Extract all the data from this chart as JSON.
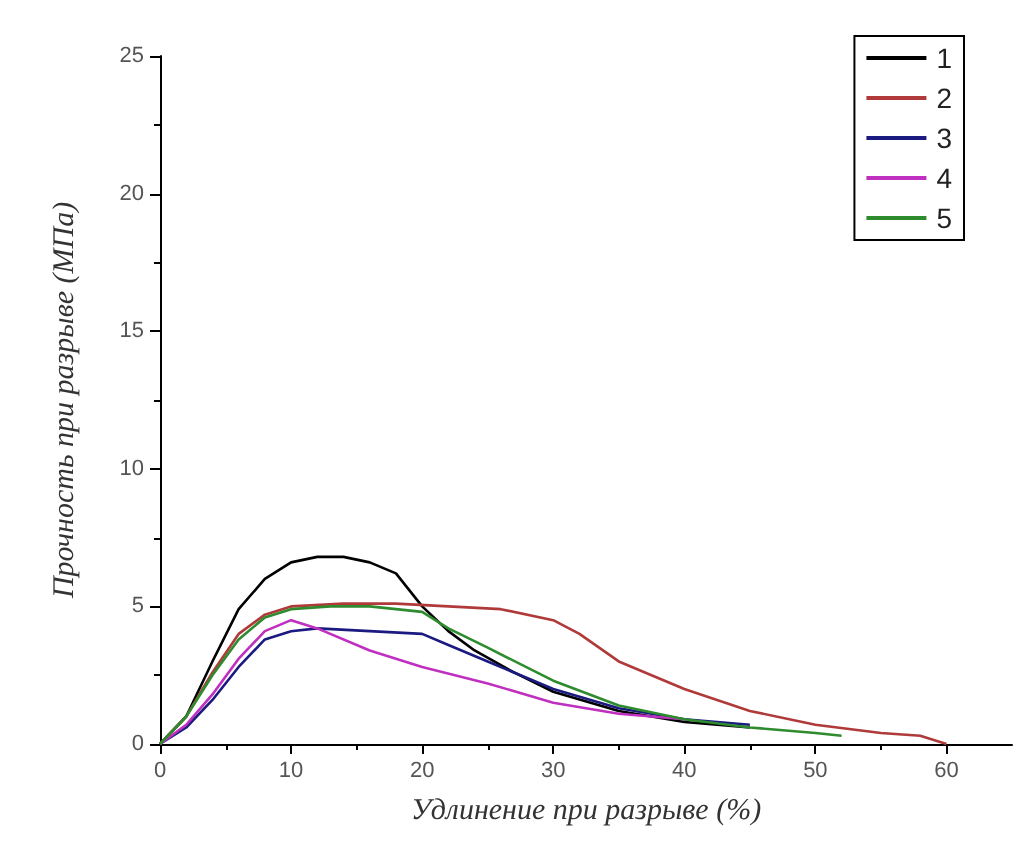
{
  "chart_data": {
    "type": "line",
    "xlabel": "Удлинение при разрыве (%)",
    "ylabel": "Прочность при разрыве (МПа)",
    "xlim": [
      0,
      65
    ],
    "xticks": [
      0,
      10,
      20,
      30,
      40,
      50,
      60
    ],
    "ylim": [
      0,
      25
    ],
    "yticks": [
      0,
      5,
      10,
      15,
      20,
      25
    ],
    "grid": false,
    "legend": "top right",
    "marker": "none",
    "line_style": "solid",
    "series": [
      {
        "name": "1",
        "color": "#000000",
        "x": [
          0,
          2,
          4,
          6,
          8,
          10,
          12,
          14,
          16,
          18,
          20,
          22,
          24,
          27,
          30,
          35,
          40,
          45
        ],
        "values": [
          0,
          1,
          3,
          4.9,
          6,
          6.6,
          6.8,
          6.8,
          6.6,
          6.2,
          5,
          4.1,
          3.4,
          2.6,
          1.9,
          1.2,
          0.8,
          0.6
        ]
      },
      {
        "name": "2",
        "color": "#b03a3a",
        "x": [
          0,
          2,
          4,
          6,
          8,
          10,
          14,
          18,
          22,
          26,
          30,
          32,
          35,
          40,
          45,
          50,
          55,
          58,
          60
        ],
        "values": [
          0,
          1,
          2.6,
          4,
          4.7,
          5,
          5.1,
          5.1,
          5,
          4.9,
          4.5,
          4,
          3,
          2,
          1.2,
          0.7,
          0.4,
          0.3,
          0
        ]
      },
      {
        "name": "3",
        "color": "#1a1a80",
        "x": [
          0,
          2,
          4,
          6,
          8,
          10,
          12,
          16,
          20,
          22,
          25,
          30,
          35,
          40,
          45
        ],
        "values": [
          0,
          0.6,
          1.6,
          2.8,
          3.8,
          4.1,
          4.2,
          4.1,
          4,
          3.6,
          3,
          2,
          1.3,
          0.9,
          0.7
        ]
      },
      {
        "name": "4",
        "color": "#c030c0",
        "x": [
          0,
          2,
          4,
          6,
          8,
          10,
          12,
          16,
          20,
          25,
          30,
          35,
          40
        ],
        "values": [
          0,
          0.7,
          1.8,
          3.1,
          4.1,
          4.5,
          4.2,
          3.4,
          2.8,
          2.2,
          1.5,
          1.1,
          0.9
        ]
      },
      {
        "name": "5",
        "color": "#2e8b2e",
        "x": [
          0,
          2,
          4,
          6,
          8,
          10,
          13,
          16,
          20,
          22,
          25,
          30,
          35,
          40,
          45,
          50,
          52
        ],
        "values": [
          0,
          1,
          2.5,
          3.8,
          4.6,
          4.9,
          5,
          5,
          4.8,
          4.2,
          3.5,
          2.3,
          1.4,
          0.9,
          0.6,
          0.4,
          0.3
        ]
      }
    ]
  }
}
